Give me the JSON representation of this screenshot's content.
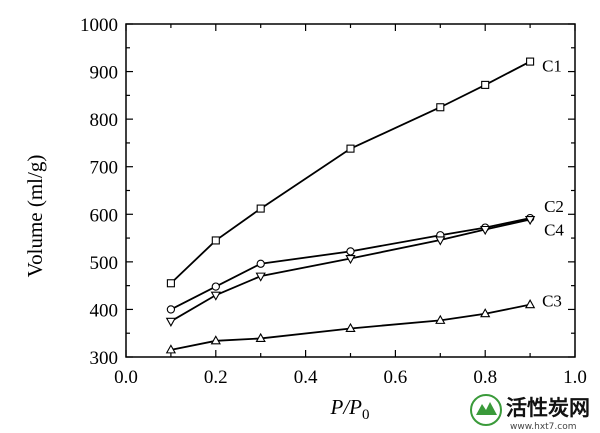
{
  "chart_data": {
    "type": "line",
    "xlabel": "P/P0",
    "xlabel_parts": {
      "main": "P/P",
      "sub": "0"
    },
    "ylabel": "Volume (ml/g)",
    "xlim": [
      0.0,
      1.0
    ],
    "ylim": [
      300,
      1000
    ],
    "x_ticks": [
      "0.0",
      "0.2",
      "0.4",
      "0.6",
      "0.8",
      "1.0"
    ],
    "y_ticks": [
      "300",
      "400",
      "500",
      "600",
      "700",
      "800",
      "900",
      "1000"
    ],
    "grid": false,
    "series": [
      {
        "name": "C1",
        "marker": "square",
        "x": [
          0.1,
          0.2,
          0.3,
          0.5,
          0.7,
          0.8,
          0.9
        ],
        "y": [
          455,
          545,
          612,
          738,
          825,
          872,
          921
        ]
      },
      {
        "name": "C2",
        "marker": "circle",
        "x": [
          0.1,
          0.2,
          0.3,
          0.5,
          0.7,
          0.8,
          0.9
        ],
        "y": [
          400,
          448,
          496,
          522,
          556,
          572,
          592
        ]
      },
      {
        "name": "C4",
        "marker": "down-triangle",
        "x": [
          0.1,
          0.2,
          0.3,
          0.5,
          0.7,
          0.8,
          0.9
        ],
        "y": [
          375,
          430,
          470,
          507,
          546,
          568,
          589
        ]
      },
      {
        "name": "C3",
        "marker": "triangle",
        "x": [
          0.1,
          0.2,
          0.3,
          0.5,
          0.7,
          0.8,
          0.9
        ],
        "y": [
          315,
          334,
          339,
          360,
          377,
          391,
          410
        ]
      }
    ]
  },
  "watermark": {
    "text": "活性炭网",
    "url": "www.hxt7.com"
  },
  "colors": {
    "line": "#000000",
    "background": "#ffffff",
    "watermark_green": "#3a9a3a"
  }
}
